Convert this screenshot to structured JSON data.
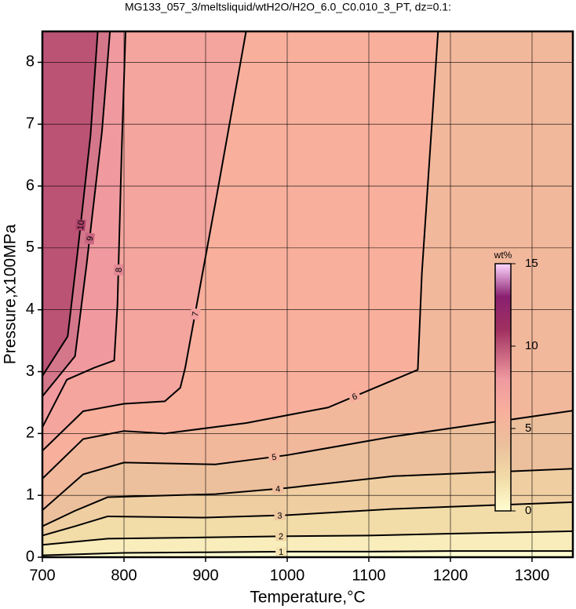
{
  "chart_data": {
    "type": "contour",
    "title": "MG133_057_3/meltsliquid/wtH2O/H2O_6.0_C0.010_3_PT, dz=0.1:",
    "xlabel": "Temperature,°C",
    "ylabel": "Pressure,x100MPa",
    "xlim": [
      700,
      1350
    ],
    "ylim": [
      0,
      8.5
    ],
    "xticks": [
      700,
      800,
      900,
      1000,
      1100,
      1200,
      1300
    ],
    "yticks": [
      0,
      1,
      2,
      3,
      4,
      5,
      6,
      7,
      8
    ],
    "grid": true,
    "contours": [
      {
        "level": 1,
        "x": [
          700,
          800,
          900,
          1000,
          1100,
          1200,
          1350
        ],
        "y": [
          0.03,
          0.07,
          0.08,
          0.09,
          0.09,
          0.1,
          0.1
        ]
      },
      {
        "level": 2,
        "x": [
          700,
          780,
          900,
          1000,
          1100,
          1200,
          1350
        ],
        "y": [
          0.2,
          0.3,
          0.32,
          0.34,
          0.35,
          0.38,
          0.42
        ]
      },
      {
        "level": 3,
        "x": [
          700,
          740,
          780,
          900,
          1000,
          1130,
          1350
        ],
        "y": [
          0.35,
          0.5,
          0.66,
          0.64,
          0.68,
          0.78,
          0.89
        ]
      },
      {
        "level": 4,
        "x": [
          700,
          740,
          780,
          912,
          1000,
          1130,
          1350
        ],
        "y": [
          0.5,
          0.75,
          0.97,
          1.02,
          1.12,
          1.31,
          1.43
        ]
      },
      {
        "level": 5,
        "x": [
          700,
          750,
          800,
          912,
          1000,
          1130,
          1350
        ],
        "y": [
          0.76,
          1.34,
          1.53,
          1.5,
          1.65,
          1.95,
          2.37
        ]
      },
      {
        "level": 6,
        "x": [
          700,
          750,
          800,
          850,
          950,
          1050,
          1160,
          1165,
          1185
        ],
        "y": [
          1.27,
          1.91,
          2.04,
          2.0,
          2.17,
          2.42,
          3.03,
          4.59,
          8.53
        ]
      },
      {
        "level": 7,
        "x": [
          700,
          750,
          800,
          850,
          869,
          875,
          913,
          950
        ],
        "y": [
          1.72,
          2.36,
          2.48,
          2.52,
          2.74,
          3.06,
          5.8,
          8.53
        ]
      },
      {
        "level": 8,
        "x": [
          700,
          730,
          763,
          788,
          792,
          797,
          802
        ],
        "y": [
          2.1,
          2.87,
          3.06,
          3.18,
          4.08,
          6.5,
          8.53
        ]
      },
      {
        "level": 9,
        "x": [
          700,
          740,
          754,
          773,
          783
        ],
        "y": [
          2.6,
          3.25,
          4.71,
          6.88,
          8.53
        ]
      },
      {
        "level": 10,
        "x": [
          700,
          731,
          744,
          759,
          768
        ],
        "y": [
          2.93,
          3.57,
          5.03,
          6.82,
          8.53
        ]
      }
    ],
    "colorbar": {
      "label": "wt%",
      "lim": [
        0,
        15
      ],
      "ticks": [
        0,
        5,
        10,
        15
      ],
      "stops": [
        {
          "value": 0,
          "color": "#fffdd0"
        },
        {
          "value": 2,
          "color": "#f2dca8"
        },
        {
          "value": 4,
          "color": "#ecc09c"
        },
        {
          "value": 6,
          "color": "#f8b09c"
        },
        {
          "value": 8,
          "color": "#f09aa0"
        },
        {
          "value": 11,
          "color": "#a03060"
        },
        {
          "value": 13,
          "color": "#8a2070"
        },
        {
          "value": 15,
          "color": "#ffd8ff"
        }
      ]
    }
  }
}
